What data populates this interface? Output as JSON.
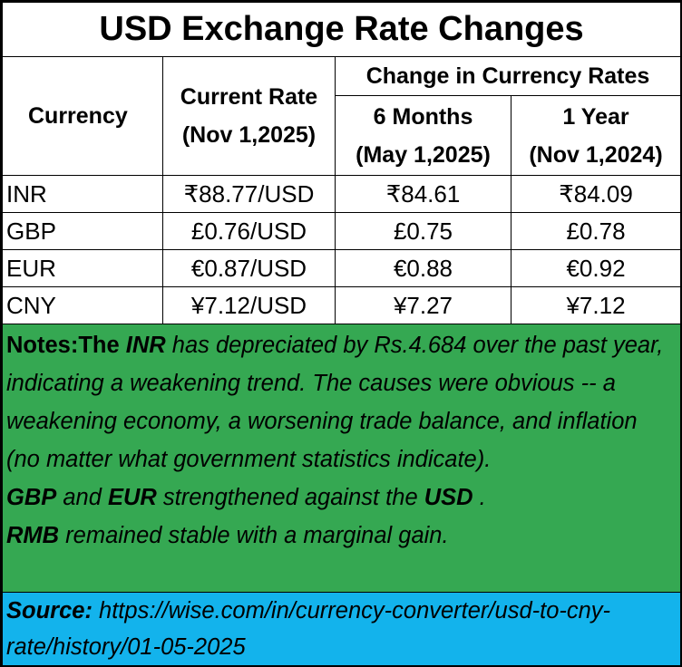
{
  "title": "USD Exchange Rate Changes",
  "header": {
    "currency": "Currency",
    "current_rate_line1": "Current Rate",
    "current_rate_line2": "(Nov 1,2025)",
    "change_group": "Change in Currency Rates",
    "six_months_line1": "6 Months",
    "six_months_line2": "(May 1,2025)",
    "one_year_line1": "1 Year",
    "one_year_line2": "(Nov 1,2024)"
  },
  "rows": [
    {
      "currency": "INR",
      "current": "₹88.77/USD",
      "six_months": "₹84.61",
      "one_year": "₹84.09"
    },
    {
      "currency": "GBP",
      "current": "£0.76/USD",
      "six_months": "£0.75",
      "one_year": "£0.78"
    },
    {
      "currency": "EUR",
      "current": "€0.87/USD",
      "six_months": "€0.88",
      "one_year": "€0.92"
    },
    {
      "currency": "CNY",
      "current": "¥7.12/USD",
      "six_months": "¥7.27",
      "one_year": "¥7.12"
    }
  ],
  "notes": {
    "label": "Notes:The ",
    "inr": "INR",
    "para1_rest": "  has depreciated by Rs.4.684 over the past year, indicating a weakening trend. The causes were obvious -- a weakening economy, a worsening trade balance, and inflation (no matter what government statistics indicate).",
    "gbp": "GBP",
    "and": "  and  ",
    "eur": "EUR",
    "strengthened": "  strengthened against the  ",
    "usd": "USD",
    "period": " .",
    "rmb": "RMB",
    "stable": "  remained stable with a marginal gain."
  },
  "source": {
    "label": "Source:",
    "url": " https://wise.com/in/currency-converter/usd-to-cny-rate/history/01-05-2025"
  },
  "colors": {
    "notes_bg": "#35a852",
    "source_bg": "#13b3ec"
  }
}
